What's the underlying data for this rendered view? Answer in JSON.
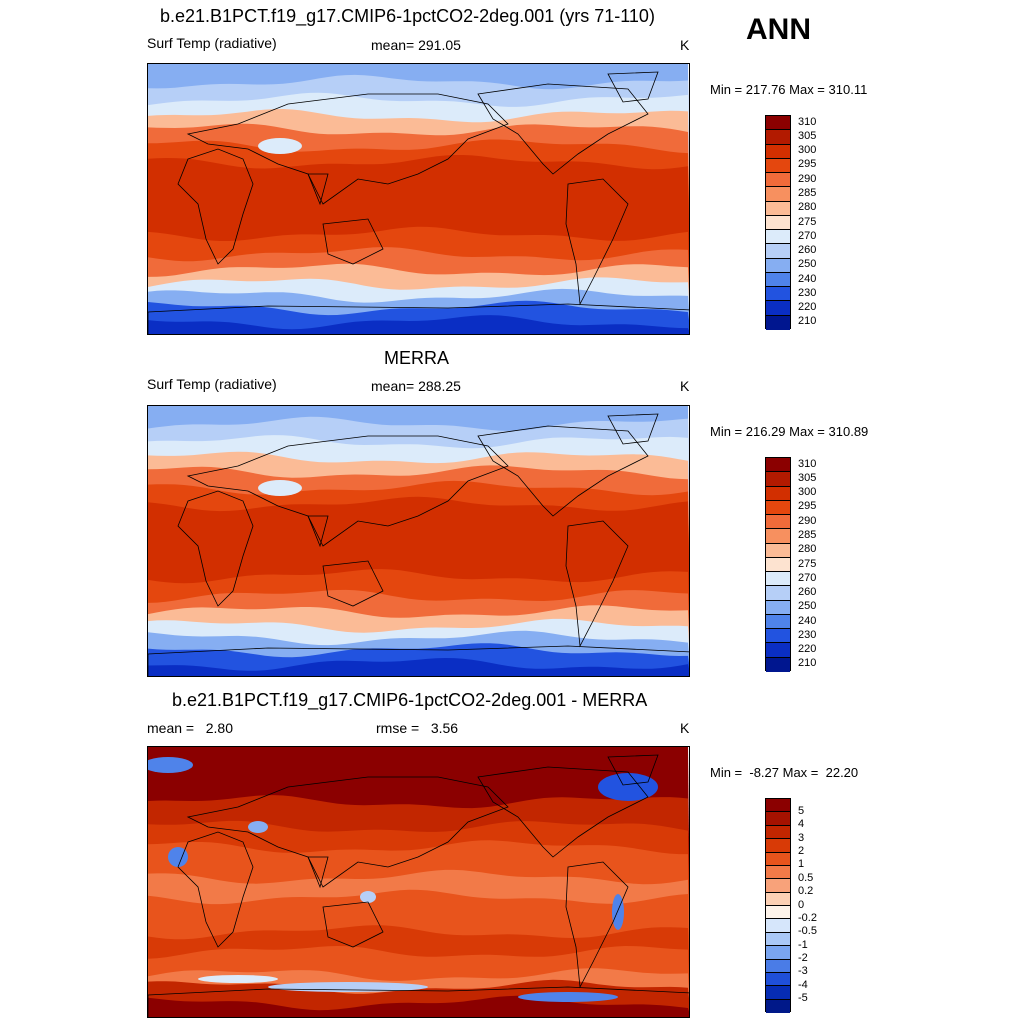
{
  "ann_label": "ANN",
  "panels": [
    {
      "title": "b.e21.B1PCT.f19_g17.CMIP6-1pctCO2-2deg.001 (yrs 71-110)",
      "left_label": "Surf Temp (radiative)",
      "center_label": "mean= 291.05",
      "units": "K",
      "minmax": "Min = 217.76 Max = 310.11",
      "colorbar": {
        "levels": [
          "310",
          "305",
          "300",
          "295",
          "290",
          "285",
          "280",
          "275",
          "270",
          "260",
          "250",
          "240",
          "230",
          "220",
          "210"
        ],
        "colors": [
          "#8b0000",
          "#b21a00",
          "#d22f00",
          "#e4470e",
          "#f06b3a",
          "#f7905f",
          "#fbbb96",
          "#fde3d0",
          "#dcebfa",
          "#b6cff7",
          "#86aef2",
          "#4f83ea",
          "#2253e0",
          "#0a2ec4",
          "#00168f"
        ]
      },
      "style": "temperature"
    },
    {
      "title": "MERRA",
      "left_label": "Surf Temp (radiative)",
      "center_label": "mean= 288.25",
      "units": "K",
      "minmax": "Min = 216.29 Max = 310.89",
      "colorbar": {
        "levels": [
          "310",
          "305",
          "300",
          "295",
          "290",
          "285",
          "280",
          "275",
          "270",
          "260",
          "250",
          "240",
          "230",
          "220",
          "210"
        ],
        "colors": [
          "#8b0000",
          "#b21a00",
          "#d22f00",
          "#e4470e",
          "#f06b3a",
          "#f7905f",
          "#fbbb96",
          "#fde3d0",
          "#dcebfa",
          "#b6cff7",
          "#86aef2",
          "#4f83ea",
          "#2253e0",
          "#0a2ec4",
          "#00168f"
        ]
      },
      "style": "temperature"
    },
    {
      "title": "b.e21.B1PCT.f19_g17.CMIP6-1pctCO2-2deg.001 - MERRA",
      "left_label": "mean =   2.80",
      "center_label": "rmse =   3.56",
      "units": "K",
      "minmax": "Min =  -8.27 Max =  22.20",
      "colorbar": {
        "levels": [
          "5",
          "4",
          "3",
          "2",
          "1",
          "0.5",
          "0.2",
          "0",
          "-0.2",
          "-0.5",
          "-1",
          "-2",
          "-3",
          "-4",
          "-5"
        ],
        "colors": [
          "#8b0000",
          "#a51200",
          "#c22600",
          "#d83a06",
          "#e8541c",
          "#f27a48",
          "#f8a27a",
          "#fcd0b4",
          "#fdf3ea",
          "#d6e6fb",
          "#aac8f6",
          "#7aa5f0",
          "#4a7ce7",
          "#1f4fd9",
          "#062cb4",
          "#001889"
        ]
      },
      "style": "difference"
    }
  ]
}
